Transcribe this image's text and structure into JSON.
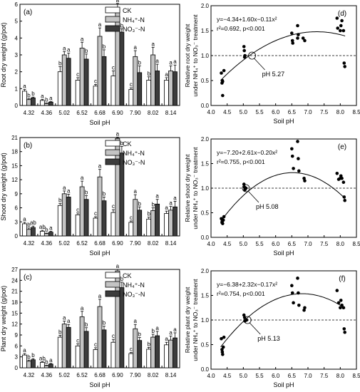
{
  "chart_data": [
    {
      "id": "a",
      "type": "bar",
      "panel_label": "(a)",
      "ylabel": "Root dry weight (g/pot)",
      "xlabel": "Soil pH",
      "ylim": [
        0,
        6
      ],
      "yticks": [
        0,
        1,
        2,
        3,
        4,
        5,
        6
      ],
      "categories": [
        "4.32",
        "4.36",
        "5.02",
        "6.52",
        "6.68",
        "6.90",
        "7.90",
        "8.02",
        "8.14"
      ],
      "legend": [
        "CK",
        "NH₄⁺-N",
        "NO₃⁻-N"
      ],
      "series": [
        {
          "name": "CK",
          "fill": "#ffffff",
          "values": [
            0.85,
            0.3,
            2.0,
            1.5,
            1.15,
            1.75,
            0.95,
            1.5,
            1.5
          ],
          "errors": [
            0.1,
            0.06,
            0.3,
            0.15,
            0.1,
            0.3,
            0.1,
            0.2,
            0.15
          ],
          "labels": [
            "a",
            "a",
            "b",
            "c",
            "c",
            "c",
            "c",
            "b",
            "a"
          ]
        },
        {
          "name": "NH₄⁺-N",
          "fill": "#c4c4c4",
          "values": [
            0.35,
            0.12,
            3.0,
            3.4,
            4.1,
            5.8,
            2.9,
            3.0,
            2.05
          ],
          "errors": [
            0.06,
            0.03,
            0.2,
            0.35,
            0.5,
            0.25,
            0.35,
            0.45,
            0.3
          ],
          "labels": [
            "b",
            "b",
            "a",
            "a",
            "a",
            "a",
            "a",
            "a",
            "a"
          ]
        },
        {
          "name": "NO₃⁻-N",
          "fill": "#3c3c3c",
          "values": [
            0.45,
            0.2,
            2.8,
            2.75,
            2.9,
            4.35,
            1.95,
            2.05,
            2.0
          ],
          "errors": [
            0.05,
            0.03,
            0.3,
            0.3,
            0.4,
            0.2,
            0.4,
            0.4,
            0.4
          ],
          "labels": [
            "b",
            "a",
            "a",
            "b",
            "b",
            "b",
            "b",
            "a",
            "a"
          ]
        }
      ]
    },
    {
      "id": "b",
      "type": "bar",
      "panel_label": "(b)",
      "ylabel": "Shoot dry weight (g/pot)",
      "xlabel": "Soil pH",
      "ylim": [
        0,
        21
      ],
      "yticks": [
        0,
        3,
        6,
        9,
        12,
        15,
        18,
        21
      ],
      "categories": [
        "4.32",
        "4.36",
        "5.02",
        "6.52",
        "6.68",
        "6.90",
        "7.90",
        "8.02",
        "8.14"
      ],
      "legend": [
        "CK",
        "NH₄⁺-N",
        "NO₃⁻-N"
      ],
      "series": [
        {
          "name": "CK",
          "fill": "#ffffff",
          "values": [
            2.6,
            1.0,
            6.5,
            4.5,
            3.8,
            5.0,
            2.9,
            3.6,
            4.8
          ],
          "errors": [
            0.3,
            0.2,
            0.4,
            0.4,
            0.3,
            0.6,
            0.3,
            0.4,
            0.5
          ],
          "labels": [
            "a",
            "ab",
            "b",
            "c",
            "c",
            "c",
            "c",
            "b",
            "a"
          ]
        },
        {
          "name": "NH₄⁺-N",
          "fill": "#c4c4c4",
          "values": [
            1.4,
            0.5,
            9.0,
            10.5,
            12.6,
            20.8,
            7.8,
            5.4,
            5.5
          ],
          "errors": [
            0.3,
            0.1,
            0.6,
            1.2,
            1.6,
            0.3,
            1.0,
            0.6,
            0.8
          ],
          "labels": [
            "b",
            "b",
            "a",
            "a",
            "a",
            "a",
            "a",
            "b",
            "a"
          ]
        },
        {
          "name": "NO₃⁻-N",
          "fill": "#3c3c3c",
          "values": [
            1.8,
            0.8,
            8.3,
            7.8,
            7.5,
            17.7,
            5.5,
            6.8,
            6.2
          ],
          "errors": [
            0.3,
            0.2,
            0.6,
            0.8,
            0.8,
            1.4,
            0.7,
            1.0,
            1.2
          ],
          "labels": [
            "ab",
            "a",
            "a",
            "b",
            "b",
            "b",
            "b",
            "a",
            "a"
          ]
        }
      ]
    },
    {
      "id": "c",
      "type": "bar",
      "panel_label": "(c)",
      "ylabel": "Plant dry weight (g/pot)",
      "xlabel": "Soil pH",
      "ylim": [
        0,
        27
      ],
      "yticks": [
        0,
        3,
        6,
        9,
        12,
        15,
        18,
        21,
        24,
        27
      ],
      "categories": [
        "4.32",
        "4.36",
        "5.02",
        "6.52",
        "6.68",
        "6.90",
        "7.90",
        "8.02",
        "8.14"
      ],
      "legend": [
        "CK",
        "NH₄⁺-N",
        "NO₃⁻-N"
      ],
      "series": [
        {
          "name": "CK",
          "fill": "#ffffff",
          "values": [
            3.5,
            1.5,
            8.4,
            6.0,
            5.0,
            7.0,
            3.9,
            5.1,
            6.3
          ],
          "errors": [
            0.4,
            0.2,
            0.5,
            0.6,
            0.5,
            0.8,
            0.3,
            0.5,
            0.7
          ],
          "labels": [
            "a",
            "ab",
            "b",
            "c",
            "c",
            "c",
            "c",
            "b",
            "a"
          ]
        },
        {
          "name": "NH₄⁺-N",
          "fill": "#c4c4c4",
          "values": [
            1.8,
            0.6,
            12.0,
            14.0,
            16.8,
            26.6,
            10.7,
            8.4,
            7.6
          ],
          "errors": [
            0.3,
            0.1,
            0.8,
            1.5,
            2.0,
            0.4,
            1.2,
            0.8,
            1.1
          ],
          "labels": [
            "b",
            "b",
            "a",
            "a",
            "a",
            "a",
            "a",
            "b",
            "a"
          ]
        },
        {
          "name": "NO₃⁻-N",
          "fill": "#3c3c3c",
          "values": [
            2.2,
            1.0,
            11.1,
            10.0,
            10.4,
            22.0,
            7.5,
            8.8,
            8.2
          ],
          "errors": [
            0.3,
            0.2,
            0.8,
            1.0,
            1.0,
            1.5,
            0.8,
            1.2,
            1.4
          ],
          "labels": [
            "b",
            "a",
            "a",
            "b",
            "b",
            "b",
            "b",
            "a",
            "a"
          ]
        }
      ]
    },
    {
      "id": "d",
      "type": "scatter",
      "panel_label": "(d)",
      "xlabel": "Soil pH",
      "ylabel": "Relative root dry weight",
      "ylabel2": "under NH₄⁺ to NO₃⁻ treatment",
      "xlim": [
        4.0,
        8.5
      ],
      "xticks": [
        4.0,
        4.5,
        5.0,
        5.5,
        6.0,
        6.5,
        7.0,
        7.5,
        8.0,
        8.5
      ],
      "ylim": [
        0.0,
        2.0
      ],
      "yticks": [
        0.0,
        0.5,
        1.0,
        1.5,
        2.0
      ],
      "equation": "y=−4.34+1.60x−0.11x²",
      "r2_label": "r²=0.692, p<0.001",
      "fit": {
        "a": -4.34,
        "b": 1.6,
        "c": -0.11
      },
      "reference_y": 1.0,
      "crossing": {
        "x": 5.27,
        "label": "pH 5.27"
      },
      "points": [
        [
          4.32,
          0.65
        ],
        [
          4.34,
          0.45
        ],
        [
          4.35,
          0.5
        ],
        [
          4.36,
          0.48
        ],
        [
          4.36,
          0.2
        ],
        [
          4.4,
          0.7
        ],
        [
          5.02,
          1.18
        ],
        [
          5.03,
          1.1
        ],
        [
          5.05,
          1.0
        ],
        [
          5.04,
          0.97
        ],
        [
          6.5,
          1.45
        ],
        [
          6.52,
          1.3
        ],
        [
          6.53,
          1.25
        ],
        [
          6.68,
          1.35
        ],
        [
          6.7,
          1.42
        ],
        [
          6.68,
          1.6
        ],
        [
          6.85,
          1.35
        ],
        [
          6.9,
          1.3
        ],
        [
          7.9,
          1.75
        ],
        [
          7.92,
          1.55
        ],
        [
          8.0,
          1.5
        ],
        [
          8.02,
          1.6
        ],
        [
          8.05,
          1.7
        ],
        [
          8.1,
          1.5
        ],
        [
          8.12,
          0.85
        ],
        [
          8.14,
          0.78
        ]
      ]
    },
    {
      "id": "e",
      "type": "scatter",
      "panel_label": "(e)",
      "xlabel": "Soil pH",
      "ylabel": "Relative shoot dry weight",
      "ylabel2": "under NH₄⁺ to NO₃⁻ treatment",
      "xlim": [
        4.0,
        8.5
      ],
      "xticks": [
        4.0,
        4.5,
        5.0,
        5.5,
        6.0,
        6.5,
        7.0,
        7.5,
        8.0,
        8.5
      ],
      "ylim": [
        0.0,
        2.0
      ],
      "yticks": [
        0.0,
        0.5,
        1.0,
        1.5,
        2.0
      ],
      "equation": "y=−7.20+2.61x−0.20x²",
      "r2_label": "r²=0.755, p<0.001",
      "fit": {
        "a": -7.2,
        "b": 2.61,
        "c": -0.2
      },
      "reference_y": 1.0,
      "crossing": {
        "x": 5.08,
        "label": "pH 5.08"
      },
      "points": [
        [
          4.32,
          0.38
        ],
        [
          4.34,
          0.3
        ],
        [
          4.35,
          0.33
        ],
        [
          4.36,
          0.28
        ],
        [
          4.38,
          0.35
        ],
        [
          4.4,
          0.42
        ],
        [
          5.02,
          1.08
        ],
        [
          5.04,
          1.02
        ],
        [
          5.05,
          0.97
        ],
        [
          5.08,
          1.0
        ],
        [
          6.5,
          1.8
        ],
        [
          6.52,
          1.65
        ],
        [
          6.55,
          1.4
        ],
        [
          6.68,
          1.95
        ],
        [
          6.7,
          1.6
        ],
        [
          6.72,
          1.35
        ],
        [
          6.88,
          1.2
        ],
        [
          6.9,
          1.15
        ],
        [
          7.9,
          1.3
        ],
        [
          7.95,
          1.18
        ],
        [
          8.0,
          1.2
        ],
        [
          8.02,
          1.25
        ],
        [
          8.05,
          1.2
        ],
        [
          8.1,
          1.12
        ],
        [
          8.12,
          0.82
        ],
        [
          8.14,
          0.75
        ]
      ]
    },
    {
      "id": "f",
      "type": "scatter",
      "panel_label": "(f)",
      "xlabel": "Soil pH",
      "ylabel": "Relative plant dry weight",
      "ylabel2": "under NH₄⁺ to NO₃⁻ treatment",
      "xlim": [
        4.0,
        8.5
      ],
      "xticks": [
        4.0,
        4.5,
        5.0,
        5.5,
        6.0,
        6.5,
        7.0,
        7.5,
        8.0,
        8.5
      ],
      "ylim": [
        0.0,
        2.0
      ],
      "yticks": [
        0.0,
        0.5,
        1.0,
        1.5,
        2.0
      ],
      "equation": "y=−6.38+2.32x−0.17x²",
      "r2_label": "r²=0.754, p<0.001",
      "fit": {
        "a": -6.38,
        "b": 2.32,
        "c": -0.17
      },
      "reference_y": 1.0,
      "crossing": {
        "x": 5.13,
        "label": "pH 5.13"
      },
      "points": [
        [
          4.32,
          0.62
        ],
        [
          4.34,
          0.4
        ],
        [
          4.35,
          0.35
        ],
        [
          4.36,
          0.3
        ],
        [
          4.38,
          0.45
        ],
        [
          4.4,
          0.65
        ],
        [
          5.02,
          1.1
        ],
        [
          5.04,
          1.05
        ],
        [
          5.05,
          0.98
        ],
        [
          5.1,
          1.0
        ],
        [
          6.5,
          1.7
        ],
        [
          6.52,
          1.55
        ],
        [
          6.55,
          1.35
        ],
        [
          6.68,
          1.85
        ],
        [
          6.7,
          1.55
        ],
        [
          6.72,
          1.3
        ],
        [
          6.88,
          1.2
        ],
        [
          6.9,
          1.25
        ],
        [
          7.9,
          1.6
        ],
        [
          7.95,
          1.35
        ],
        [
          8.0,
          1.25
        ],
        [
          8.02,
          1.4
        ],
        [
          8.05,
          1.3
        ],
        [
          8.1,
          1.25
        ],
        [
          8.12,
          0.82
        ],
        [
          8.14,
          0.75
        ]
      ]
    }
  ]
}
